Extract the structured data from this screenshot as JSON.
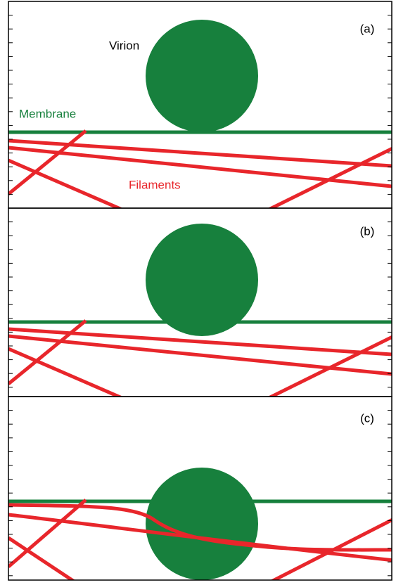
{
  "panels": [
    {
      "label": "(a)"
    },
    {
      "label": "(b)"
    },
    {
      "label": "(c)"
    }
  ],
  "labels": {
    "virion": "Virion",
    "membrane": "Membrane",
    "filaments": "Filaments"
  }
}
